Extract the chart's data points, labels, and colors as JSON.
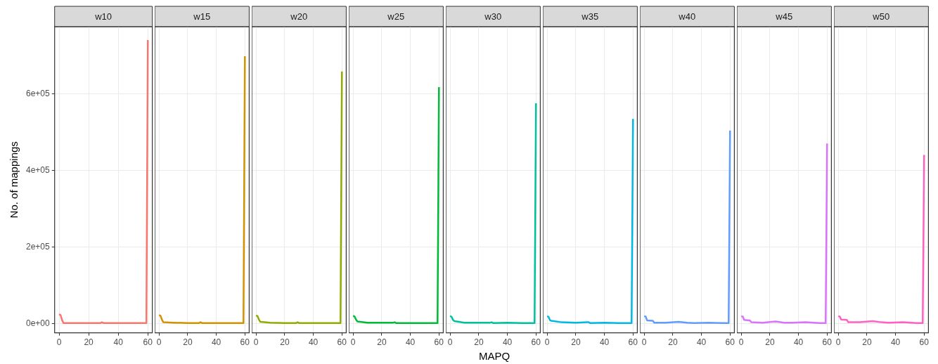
{
  "chart_data": [
    {
      "type": "line",
      "title": "w10",
      "ylabel": "No. of mappings",
      "color": "#f8766d",
      "x": [
        0,
        1,
        2,
        3,
        10,
        20,
        28,
        29,
        30,
        40,
        50,
        59,
        60
      ],
      "values": [
        24000,
        22000,
        9000,
        1000,
        1000,
        1000,
        1000,
        3000,
        1000,
        1000,
        1000,
        1000,
        740000
      ],
      "xlim": [
        -3,
        63
      ],
      "xticks": [
        0,
        20,
        40,
        60
      ],
      "ylim": [
        -24500,
        775000
      ],
      "yticks": [
        {
          "value": 0,
          "label": "0e+00"
        },
        {
          "value": 200000,
          "label": "2e+05"
        },
        {
          "value": 400000,
          "label": "4e+05"
        },
        {
          "value": 600000,
          "label": "6e+05"
        }
      ],
      "grid": true
    },
    {
      "type": "line",
      "title": "w15",
      "color": "#d39200",
      "x": [
        0,
        1,
        2,
        3,
        10,
        20,
        28,
        29,
        30,
        40,
        50,
        59,
        60
      ],
      "values": [
        22000,
        20000,
        10000,
        3000,
        2000,
        1000,
        1000,
        3000,
        1000,
        1000,
        1000,
        1000,
        698000
      ],
      "xlim": [
        -3,
        63
      ],
      "xticks": [
        0,
        20,
        40,
        60
      ],
      "ylim": [
        -24500,
        775000
      ],
      "yticks": [
        0,
        200000,
        400000,
        600000
      ],
      "grid": true,
      "tick_labels": "x"
    },
    {
      "type": "line",
      "title": "w20",
      "color": "#93aa00",
      "x": [
        0,
        1,
        2,
        3,
        10,
        20,
        28,
        29,
        30,
        40,
        50,
        59,
        60
      ],
      "values": [
        21000,
        19000,
        10000,
        4000,
        2000,
        1000,
        1000,
        3000,
        1000,
        1000,
        1000,
        1000,
        658000
      ],
      "xlim": [
        -3,
        63
      ],
      "xticks": [
        0,
        20,
        40,
        60
      ],
      "ylim": [
        -24500,
        775000
      ],
      "yticks": [
        0,
        200000,
        400000,
        600000
      ],
      "grid": true,
      "tick_labels": "x"
    },
    {
      "type": "line",
      "title": "w25",
      "color": "#00ba38",
      "x": [
        0,
        1,
        2,
        3,
        10,
        20,
        28,
        29,
        30,
        40,
        50,
        59,
        60
      ],
      "values": [
        20000,
        18000,
        10000,
        5000,
        2000,
        2000,
        2000,
        3000,
        1000,
        1000,
        1000,
        1000,
        617000
      ],
      "xlim": [
        -3,
        63
      ],
      "xticks": [
        0,
        20,
        40,
        60
      ],
      "ylim": [
        -24500,
        775000
      ],
      "yticks": [
        0,
        200000,
        400000,
        600000
      ],
      "grid": true,
      "tick_labels": "x"
    },
    {
      "type": "line",
      "title": "w30",
      "xlabel": "MAPQ",
      "color": "#00c19f",
      "x": [
        0,
        1,
        2,
        3,
        10,
        20,
        28,
        29,
        30,
        40,
        50,
        59,
        60
      ],
      "values": [
        20000,
        17000,
        9000,
        6000,
        2000,
        2000,
        2000,
        3000,
        1000,
        2000,
        1000,
        1000,
        575000
      ],
      "xlim": [
        -3,
        63
      ],
      "xticks": [
        0,
        20,
        40,
        60
      ],
      "ylim": [
        -24500,
        775000
      ],
      "yticks": [
        0,
        200000,
        400000,
        600000
      ],
      "grid": true,
      "tick_labels": "x"
    },
    {
      "type": "line",
      "title": "w35",
      "color": "#00b9e3",
      "x": [
        0,
        1,
        2,
        3,
        10,
        20,
        28,
        29,
        30,
        40,
        50,
        59,
        60
      ],
      "values": [
        19000,
        17000,
        8000,
        7000,
        3000,
        2000,
        3000,
        3000,
        1000,
        2000,
        1000,
        1000,
        534000
      ],
      "xlim": [
        -3,
        63
      ],
      "xticks": [
        0,
        20,
        40,
        60
      ],
      "ylim": [
        -24500,
        775000
      ],
      "yticks": [
        0,
        200000,
        400000,
        600000
      ],
      "grid": true,
      "tick_labels": "x"
    },
    {
      "type": "line",
      "title": "w40",
      "color": "#619cff",
      "x": [
        0,
        1,
        2,
        6,
        7,
        15,
        24,
        30,
        35,
        45,
        55,
        59,
        60
      ],
      "values": [
        19000,
        18000,
        8000,
        7000,
        2000,
        2000,
        4000,
        2000,
        1000,
        2000,
        1000,
        1000,
        504000
      ],
      "xlim": [
        -3,
        63
      ],
      "xticks": [
        0,
        20,
        40,
        60
      ],
      "ylim": [
        -24500,
        775000
      ],
      "yticks": [
        0,
        200000,
        400000,
        600000
      ],
      "grid": true,
      "tick_labels": "x"
    },
    {
      "type": "line",
      "title": "w45",
      "color": "#db72fb",
      "x": [
        0,
        1,
        2,
        6,
        7,
        15,
        24,
        30,
        35,
        45,
        55,
        59,
        60
      ],
      "values": [
        19000,
        18000,
        9000,
        8000,
        3000,
        2000,
        5000,
        2000,
        2000,
        3000,
        1000,
        1000,
        470000
      ],
      "xlim": [
        -3,
        63
      ],
      "xticks": [
        0,
        20,
        40,
        60
      ],
      "ylim": [
        -24500,
        775000
      ],
      "yticks": [
        0,
        200000,
        400000,
        600000
      ],
      "grid": true,
      "tick_labels": "x"
    },
    {
      "type": "line",
      "title": "w50",
      "color": "#ff61c3",
      "x": [
        0,
        1,
        2,
        6,
        7,
        15,
        24,
        30,
        35,
        45,
        55,
        59,
        60
      ],
      "values": [
        19000,
        18000,
        10000,
        9000,
        3000,
        3000,
        6000,
        3000,
        2000,
        3000,
        1000,
        1000,
        440000
      ],
      "xlim": [
        -3,
        63
      ],
      "xticks": [
        0,
        20,
        40,
        60
      ],
      "ylim": [
        -24500,
        775000
      ],
      "yticks": [
        0,
        200000,
        400000,
        600000
      ],
      "grid": true,
      "tick_labels": "x"
    }
  ]
}
